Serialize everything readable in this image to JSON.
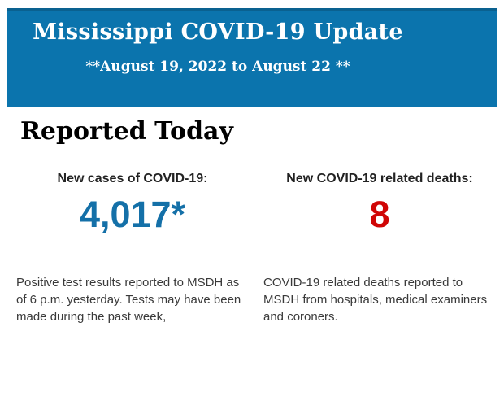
{
  "header": {
    "title": "Mississippi COVID-19 Update",
    "subtitle": "**August 19, 2022 to August 22 **",
    "background_color": "#0b74ad",
    "top_border_color": "#0a6190",
    "text_color": "#ffffff"
  },
  "section_title": "Reported Today",
  "stats": {
    "cases": {
      "label": "New cases of COVID-19:",
      "value": "4,017*",
      "value_color": "#1470a8",
      "description": "Positive test results reported to MSDH as of 6 p.m. yesterday. Tests may have been made during the past week,"
    },
    "deaths": {
      "label": "New COVID-19 related deaths:",
      "value": "8",
      "value_color": "#d00606",
      "description": "COVID-19 related deaths reported to MSDH from hospitals, medical examiners and coroners."
    }
  }
}
